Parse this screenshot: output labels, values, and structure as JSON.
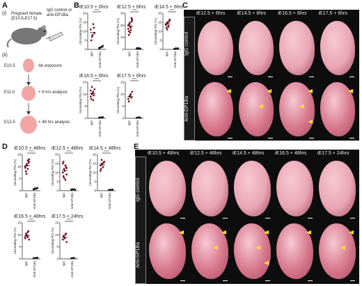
{
  "panels": {
    "A": "A",
    "B": "B",
    "C": "C",
    "D": "D",
    "E": "E"
  },
  "panelA": {
    "step1_label": "(i)",
    "step1_text": "Pregnant female",
    "step1_range": "(E10.5-E17.5)",
    "treatment_line1": "IgG control or",
    "treatment_line2": "anti-GP1Ba",
    "step2_label": "(ii)",
    "timeline": [
      {
        "stage": "E10.5",
        "event": "Ab exposure"
      },
      {
        "stage": "E11.0",
        "event": "+ 6 hrs analysis"
      },
      {
        "stage": "E12.5",
        "event": "+ 48 hrs analysis"
      }
    ]
  },
  "plot_common": {
    "ylabel": "Circulating Plts (%)",
    "categories": [
      "IgG",
      "Anti-GP1Ba"
    ],
    "significance": "****"
  },
  "chart_data": [
    {
      "type": "scatter",
      "title": "iE10.5 + 6hrs",
      "ylim": [
        0,
        20
      ],
      "ticks": [
        0,
        5,
        10,
        15,
        20
      ],
      "series": [
        {
          "name": "IgG",
          "values": [
            11,
            7,
            14,
            9,
            5,
            8,
            12
          ]
        },
        {
          "name": "Anti-GP1Ba",
          "values": [
            0.5,
            1,
            1.5,
            2,
            0.8,
            1.2
          ]
        }
      ]
    },
    {
      "type": "scatter",
      "title": "iE12.5 + 6hrs",
      "ylim": [
        0,
        30
      ],
      "ticks": [
        0,
        10,
        20,
        30
      ],
      "series": [
        {
          "name": "IgG",
          "values": [
            20,
            22,
            18,
            25,
            15,
            19,
            23,
            17,
            21,
            16,
            24,
            12,
            14,
            26
          ]
        },
        {
          "name": "Anti-GP1Ba",
          "values": [
            0.5,
            0.8,
            1,
            0.6,
            1.2,
            0.4,
            0.7
          ]
        }
      ]
    },
    {
      "type": "scatter",
      "title": "iE14.5 + 6hrs",
      "ylim": [
        0,
        20
      ],
      "ticks": [
        0,
        5,
        10,
        15,
        20
      ],
      "series": [
        {
          "name": "IgG",
          "values": [
            14,
            15,
            13,
            16,
            12,
            14.5,
            15.5,
            13.5,
            11,
            12.5,
            16.5
          ]
        },
        {
          "name": "Anti-GP1Ba",
          "values": [
            0.3,
            0.5,
            0.4,
            0.6,
            0.2,
            0.5
          ]
        }
      ]
    },
    {
      "type": "scatter",
      "title": "iE16.5 + 6hrs",
      "ylim": [
        0,
        15
      ],
      "ticks": [
        0,
        5,
        10,
        15
      ],
      "series": [
        {
          "name": "IgG",
          "values": [
            9,
            10,
            11,
            12,
            8,
            10.5,
            9.5,
            11.5,
            13,
            7.5
          ]
        },
        {
          "name": "Anti-GP1Ba",
          "values": [
            0.2,
            0.4,
            0.3,
            0.5,
            0.2
          ]
        }
      ]
    },
    {
      "type": "scatter",
      "title": "iE17.5 + 6hrs",
      "ylim": [
        0,
        15
      ],
      "ticks": [
        0,
        5,
        10,
        15
      ],
      "series": [
        {
          "name": "IgG",
          "values": [
            8,
            9,
            10,
            11,
            7,
            9.5,
            8.5
          ]
        },
        {
          "name": "Anti-GP1Ba",
          "values": [
            0.2,
            0.3,
            0.4,
            0.2
          ]
        }
      ]
    },
    {
      "type": "scatter",
      "title": "iE10.5 + 48hrs",
      "ylim": [
        0,
        15
      ],
      "ticks": [
        0,
        5,
        10,
        15
      ],
      "series": [
        {
          "name": "IgG",
          "values": [
            10,
            11,
            9,
            12,
            8,
            10.5,
            11.5,
            9.5,
            7,
            12.5,
            13
          ]
        },
        {
          "name": "Anti-GP1Ba",
          "values": [
            0.5,
            1,
            0.8,
            1.2,
            0.6
          ]
        }
      ]
    },
    {
      "type": "scatter",
      "title": "iE12.5 + 48hrs",
      "ylim": [
        0,
        20
      ],
      "ticks": [
        0,
        5,
        10,
        15,
        20
      ],
      "series": [
        {
          "name": "IgG",
          "values": [
            10,
            12,
            14,
            9,
            8,
            11,
            13,
            15,
            7,
            6,
            12.5,
            16
          ]
        },
        {
          "name": "Anti-GP1Ba",
          "values": [
            0.4,
            0.6,
            0.8,
            0.5,
            0.7
          ]
        }
      ]
    },
    {
      "type": "scatter",
      "title": "iE14.5 + 48hrs",
      "ylim": [
        0,
        20
      ],
      "ticks": [
        0,
        5,
        10,
        15,
        20
      ],
      "series": [
        {
          "name": "IgG",
          "values": [
            14,
            15,
            13,
            16,
            12,
            14.5,
            15.5,
            11,
            17
          ]
        },
        {
          "name": "Anti-GP1Ba",
          "values": [
            0.3,
            0.5,
            0.4,
            0.6
          ]
        }
      ]
    },
    {
      "type": "scatter",
      "title": "iE16.5 + 48hrs",
      "ylim": [
        0,
        15
      ],
      "ticks": [
        0,
        5,
        10,
        15
      ],
      "series": [
        {
          "name": "IgG",
          "values": [
            9,
            10,
            11,
            8,
            10.5,
            9.5,
            11.5,
            8.5,
            10,
            9
          ]
        },
        {
          "name": "Anti-GP1Ba",
          "values": [
            0.2,
            0.4,
            0.3,
            0.5
          ]
        }
      ]
    },
    {
      "type": "scatter",
      "title": "iE17.5 + 24hrs",
      "ylim": [
        0,
        15
      ],
      "ticks": [
        0,
        5,
        10,
        15
      ],
      "series": [
        {
          "name": "IgG",
          "values": [
            8,
            9,
            10,
            7,
            9.5,
            8.5,
            10.5
          ]
        },
        {
          "name": "Anti-GP1Ba",
          "values": [
            0.2,
            0.3,
            0.4
          ]
        }
      ]
    }
  ],
  "panelC": {
    "columns": [
      "iE12.5 + 6hrs",
      "iE14.5 + 6hrs",
      "iE16.5 + 6hrs",
      "iE17.5 + 6hrs"
    ],
    "rows": [
      "IgG control",
      "Anti-GP1Ba"
    ]
  },
  "panelE": {
    "columns": [
      "iE10.5 + 48hrs",
      "iE12.5 + 48hrs",
      "iE14.5 + 48hrs",
      "iE16.5 + 48hrs",
      "iE17.5 + 24hrs"
    ],
    "rows": [
      "IgG control",
      "Anti-GP1Ba"
    ]
  },
  "colors": {
    "dot": "#7a1424",
    "dot_anti": "#2a2a2a",
    "arrow": "#ffe22a",
    "panel_bg": "#0d0d0d"
  }
}
